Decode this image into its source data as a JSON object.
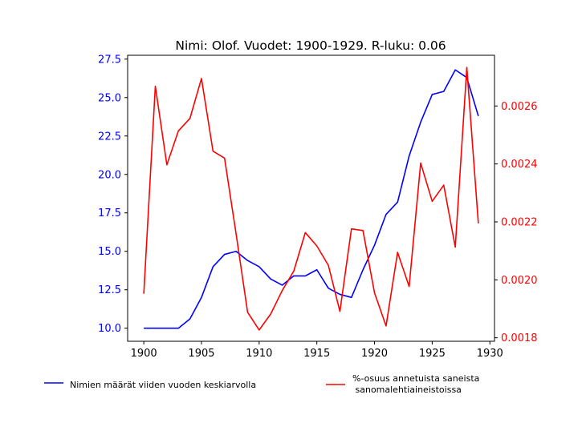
{
  "chart_data": {
    "type": "line",
    "title": "Nimi: Olof. Vuodet: 1900-1929. R-luku: 0.06",
    "x": [
      1900,
      1901,
      1902,
      1903,
      1904,
      1905,
      1906,
      1907,
      1908,
      1909,
      1910,
      1911,
      1912,
      1913,
      1914,
      1915,
      1916,
      1917,
      1918,
      1919,
      1920,
      1921,
      1922,
      1923,
      1924,
      1925,
      1926,
      1927,
      1928,
      1929
    ],
    "xlim": [
      1898.6,
      1930.4
    ],
    "xticks": [
      1900,
      1905,
      1910,
      1915,
      1920,
      1925,
      1930
    ],
    "left_axis": {
      "ylim": [
        9.15,
        27.75
      ],
      "ticks": [
        10.0,
        12.5,
        15.0,
        17.5,
        20.0,
        22.5,
        25.0,
        27.5
      ],
      "tick_labels": [
        "10.0",
        "12.5",
        "15.0",
        "17.5",
        "20.0",
        "22.5",
        "25.0",
        "27.5"
      ],
      "color": "#0000ff"
    },
    "right_axis": {
      "ylim": [
        0.001788,
        0.002775
      ],
      "ticks": [
        0.0018,
        0.002,
        0.0022,
        0.0024,
        0.0026
      ],
      "tick_labels": [
        "0.0018",
        "0.0020",
        "0.0022",
        "0.0024",
        "0.0026"
      ],
      "color": "#ff0000"
    },
    "series": [
      {
        "name": "Nimien määrät viiden vuoden keskiarvolla",
        "axis": "left",
        "color": "#0000ff",
        "values": [
          10.0,
          10.0,
          10.0,
          10.0,
          10.6,
          12.0,
          14.0,
          14.8,
          15.0,
          14.4,
          14.0,
          13.2,
          12.8,
          13.4,
          13.4,
          13.8,
          12.6,
          12.2,
          12.0,
          13.8,
          15.4,
          17.4,
          18.2,
          21.2,
          23.4,
          25.2,
          25.4,
          26.8,
          26.3,
          23.8
        ]
      },
      {
        "name": "%-osuus annetuista saneista\n sanomalehtiaineistoissa",
        "axis": "right",
        "color": "#ff0000",
        "values": [
          0.001952,
          0.002668,
          0.002397,
          0.002514,
          0.002557,
          0.002695,
          0.002444,
          0.00242,
          0.002159,
          0.001888,
          0.001827,
          0.001882,
          0.001963,
          0.00203,
          0.002163,
          0.002117,
          0.00205,
          0.001891,
          0.002176,
          0.00217,
          0.001955,
          0.001841,
          0.002095,
          0.001977,
          0.002403,
          0.002271,
          0.002327,
          0.002113,
          0.002733,
          0.002195
        ]
      }
    ],
    "legend": {
      "placement": "bottom",
      "entries": [
        "Nimien määrät viiden vuoden keskiarvolla",
        "%-osuus annetuista saneista\n sanomalehtiaineistoissa"
      ]
    }
  }
}
